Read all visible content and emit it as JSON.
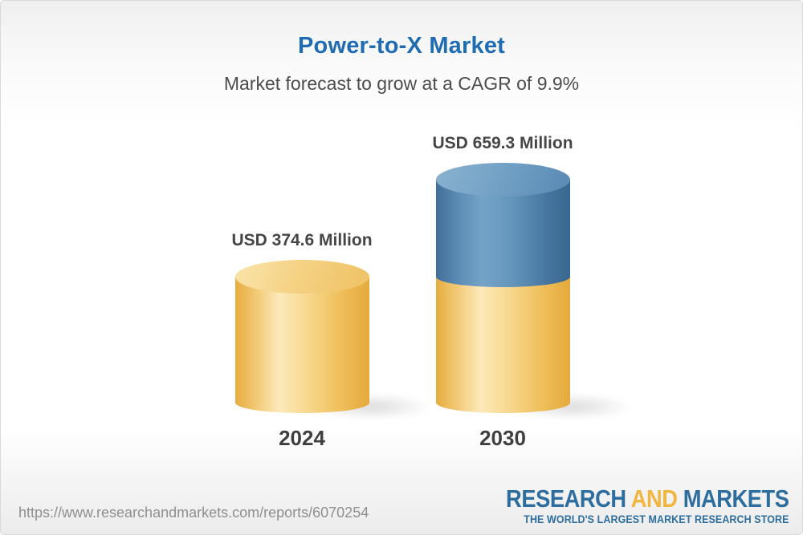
{
  "header": {
    "title": "Power-to-X Market",
    "subtitle": "Market forecast to grow at a CAGR of 9.9%"
  },
  "chart_data": {
    "type": "bar",
    "style": "3d-cylinder",
    "categories": [
      "2024",
      "2030"
    ],
    "values": [
      374.6,
      659.3
    ],
    "value_labels": [
      "USD 374.6 Million",
      "USD 659.3 Million"
    ],
    "unit": "USD Million",
    "cagr": "9.9%",
    "title": "Power-to-X Market",
    "xlabel": "",
    "ylabel": "",
    "legend": "none",
    "grid": false,
    "series_colors": {
      "base": "#f0bd55",
      "growth": "#4a7ca4"
    },
    "notes": "2030 cylinder is split: lower yellow segment equals the 2024 value, upper blue segment is the growth above 2024"
  },
  "colors": {
    "title_blue": "#1f6cb2",
    "text_dark": "#454545",
    "url_gray": "#8f8f8f",
    "logo_blue": "#2d6e9e",
    "logo_yellow": "#f0b63f"
  },
  "footer": {
    "url": "https://www.researchandmarkets.com/reports/6070254",
    "logo": {
      "word1": "RESEARCH",
      "word2": "AND",
      "word3": "MARKETS",
      "tagline": "THE WORLD'S LARGEST MARKET RESEARCH STORE"
    }
  }
}
